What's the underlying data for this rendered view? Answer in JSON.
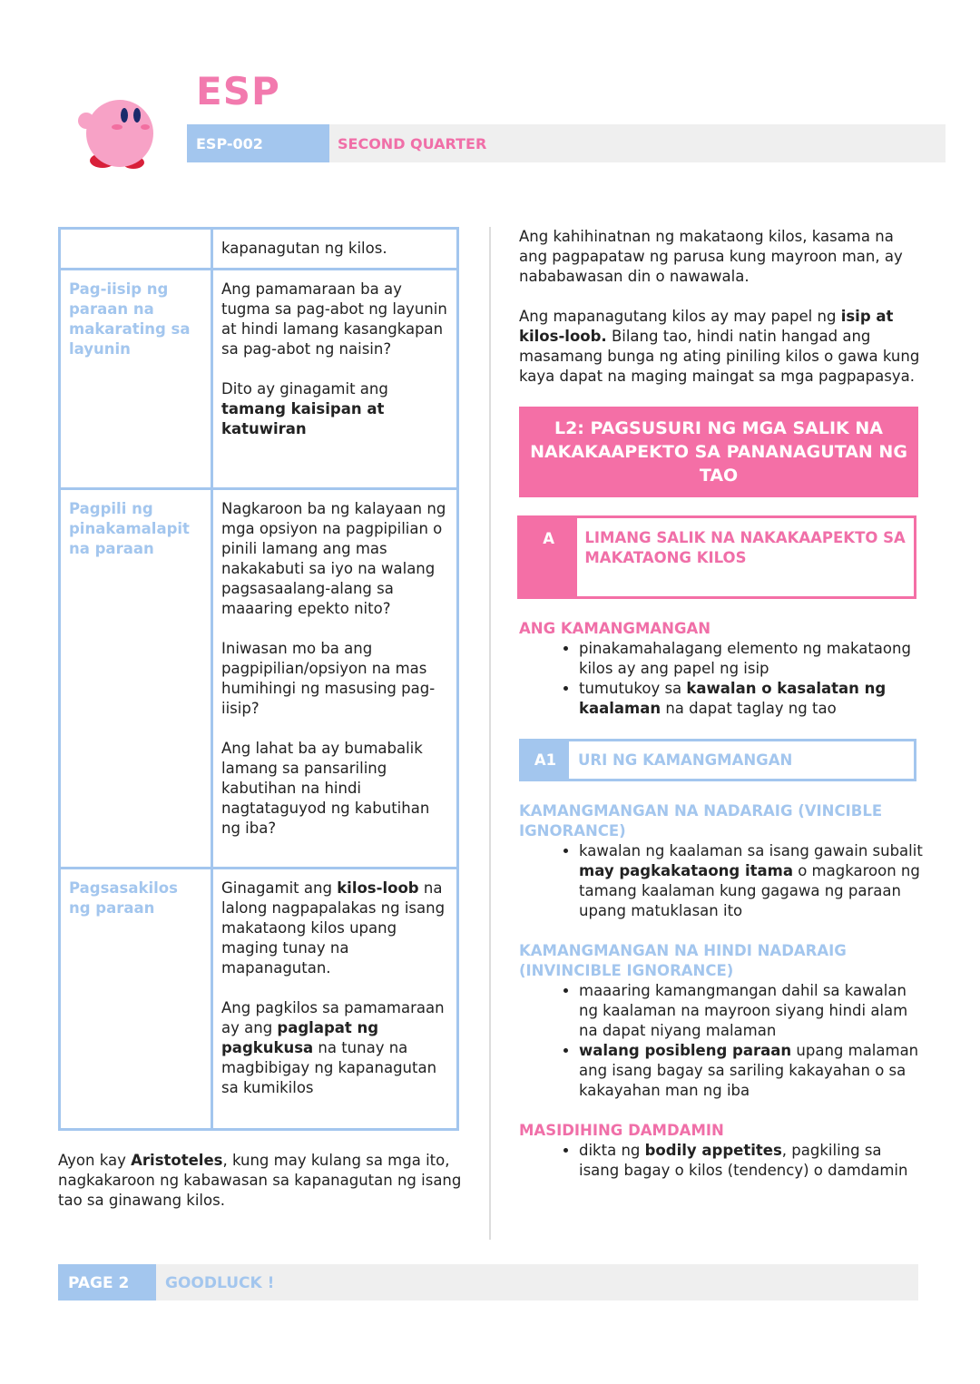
{
  "header": {
    "title": "ESP",
    "code": "ESP-002",
    "quarter": "SECOND QUARTER"
  },
  "table": {
    "rows": [
      [
        null,
        [
          [
            "kapanagutan ng kilos."
          ]
        ]
      ],
      [
        "Pag-iisip ng paraan na makarating sa layunin",
        [
          [
            "Ang pamamaraan ba ay tugma sa pag-abot ng layunin at hindi lamang kasangkapan sa pag-abot ng naisin?"
          ],
          [
            "Dito ay ginagamit ang ",
            {
              "text": "tamang kaisipan at katuwiran",
              "bold": true
            }
          ]
        ]
      ],
      [
        "Pagpili ng pinakamalapit na paraan",
        [
          [
            "Nagkaroon ba ng kalayaan ng mga opsiyon na pagpipilian o pinili lamang ang mas nakakabuti sa iyo na walang pagsasaalang-alang sa maaaring epekto nito?"
          ],
          [
            "Iniwasan mo ba ang pagpipilian/opsiyon na mas humihingi ng masusing pag-iisip?"
          ],
          [
            "Ang lahat ba ay bumabalik lamang sa pansariling kabutihan na hindi nagtataguyod ng kabutihan ng iba?"
          ]
        ]
      ],
      [
        "Pagsasakilos ng paraan",
        [
          [
            "Ginagamit ang ",
            {
              "text": "kilos-loob",
              "bold": true
            },
            " na lalong nagpapalakas ng isang makataong kilos upang maging tunay na mapanagutan."
          ],
          [
            "Ang pagkilos sa pamamaraan ay ang ",
            {
              "text": "paglapat ng pagkukusa",
              "bold": true
            },
            " na tunay na magbibigay ng kapanagutan sa kumikilos"
          ]
        ]
      ]
    ]
  },
  "left_note": [
    "Ayon kay ",
    {
      "text": "Aristoteles",
      "bold": true
    },
    ", kung may kulang sa mga ito, nagkakaroon ng kabawasan sa kapanagutan ng isang tao sa ginawang kilos."
  ],
  "right": {
    "paragraphs": [
      [
        "Ang kahihinatnan ng makataong kilos, kasama na ang pagpapataw ng parusa kung mayroon man, ay nababawasan din o nawawala."
      ],
      [
        "Ang mapanagutang kilos ay may papel ng ",
        {
          "text": "isip at kilos-loob.",
          "bold": true
        },
        " Bilang tao, hindi natin hangad ang masamang bunga ng ating piniling kilos o gawa kung kaya dapat na maging maingat sa mga pagpapasya."
      ]
    ],
    "lesson_title": "L2: PAGSUSURI NG MGA SALIK NA NAKAKAAPEKTO SA PANANAGUTAN NG TAO",
    "section": {
      "letter": "A",
      "title": "LIMANG SALIK NA NAKAKAAPEKTO SA MAKATAONG KILOS"
    },
    "topic1": {
      "heading": "ANG KAMANGMANGAN",
      "bullets": [
        [
          "pinakamahalagang elemento ng makataong kilos ay ang papel ng isip"
        ],
        [
          "tumutukoy sa ",
          {
            "text": "kawalan o kasalatan ng kaalaman",
            "bold": true
          },
          " na dapat taglay ng tao"
        ]
      ]
    },
    "subsection": {
      "code": "A1",
      "title": "URI NG KAMANGMANGAN"
    },
    "topic2": {
      "heading": "KAMANGMANGAN NA NADARAIG (VINCIBLE IGNORANCE)",
      "bullets": [
        [
          "kawalan ng kaalaman sa isang gawain subalit ",
          {
            "text": "may pagkakataong itama",
            "bold": true
          },
          " o magkaroon ng tamang kaalaman kung gagawa ng paraan upang matuklasan ito"
        ]
      ]
    },
    "topic3": {
      "heading": "KAMANGMANGAN NA HINDI NADARAIG (INVINCIBLE IGNORANCE)",
      "bullets": [
        [
          "maaaring kamangmangan dahil sa kawalan ng kaalaman na mayroon siyang hindi alam na dapat niyang malaman"
        ],
        [
          {
            "text": "walang posibleng paraan",
            "bold": true
          },
          " upang malaman ang isang bagay sa sariling kakayahan o sa kakayahan man ng iba"
        ]
      ]
    },
    "topic4": {
      "heading": "MASIDIHING DAMDAMIN",
      "bullets": [
        [
          "dikta ng ",
          {
            "text": "bodily appetites",
            "bold": true
          },
          ", pagkiling sa isang bagay o kilos (tendency) o damdamin"
        ]
      ]
    }
  },
  "footer": {
    "page": "PAGE 2",
    "note": "GOODLUCK !"
  }
}
